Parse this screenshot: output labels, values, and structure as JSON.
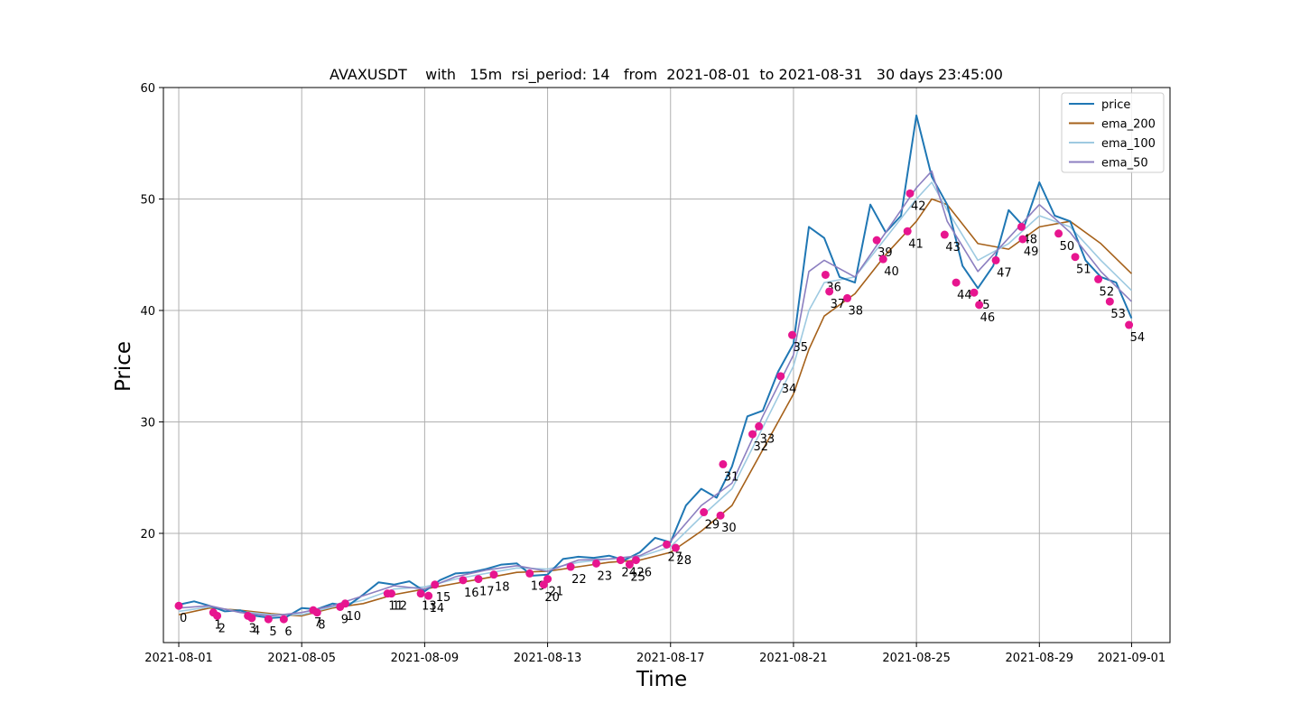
{
  "chart_data": {
    "type": "line",
    "title": "AVAXUSDT    with   15m  rsi_period: 14   from  2021-08-01  to 2021-08-31   30 days 23:45:00",
    "xlabel": "Time",
    "ylabel": "Price",
    "x_range": [
      "2021-07-31T12:00",
      "2021-09-02T06:00"
    ],
    "ylim": [
      10.2,
      60
    ],
    "x_ticks": [
      "2021-08-01",
      "2021-08-05",
      "2021-08-09",
      "2021-08-13",
      "2021-08-17",
      "2021-08-21",
      "2021-08-25",
      "2021-08-29",
      "2021-09-01"
    ],
    "y_ticks": [
      20,
      30,
      40,
      50,
      60
    ],
    "grid": true,
    "legend": "top-right",
    "series": [
      {
        "name": "price",
        "color": "#1f77b4",
        "points": [
          [
            "2021-08-01T00:00",
            13.6
          ],
          [
            "2021-08-01T12:00",
            13.9
          ],
          [
            "2021-08-02T00:00",
            13.5
          ],
          [
            "2021-08-02T12:00",
            13.0
          ],
          [
            "2021-08-03T00:00",
            13.1
          ],
          [
            "2021-08-03T12:00",
            12.6
          ],
          [
            "2021-08-04T00:00",
            12.4
          ],
          [
            "2021-08-04T12:00",
            12.5
          ],
          [
            "2021-08-05T00:00",
            13.3
          ],
          [
            "2021-08-05T12:00",
            13.2
          ],
          [
            "2021-08-06T00:00",
            13.7
          ],
          [
            "2021-08-06T12:00",
            13.5
          ],
          [
            "2021-08-07T00:00",
            14.5
          ],
          [
            "2021-08-07T12:00",
            15.6
          ],
          [
            "2021-08-08T00:00",
            15.4
          ],
          [
            "2021-08-08T12:00",
            15.7
          ],
          [
            "2021-08-09T00:00",
            14.8
          ],
          [
            "2021-08-09T12:00",
            15.8
          ],
          [
            "2021-08-10T00:00",
            16.4
          ],
          [
            "2021-08-10T12:00",
            16.5
          ],
          [
            "2021-08-11T00:00",
            16.8
          ],
          [
            "2021-08-11T12:00",
            17.2
          ],
          [
            "2021-08-12T00:00",
            17.3
          ],
          [
            "2021-08-12T12:00",
            16.2
          ],
          [
            "2021-08-13T00:00",
            16.3
          ],
          [
            "2021-08-13T12:00",
            17.7
          ],
          [
            "2021-08-14T00:00",
            17.9
          ],
          [
            "2021-08-14T12:00",
            17.8
          ],
          [
            "2021-08-15T00:00",
            18.0
          ],
          [
            "2021-08-15T12:00",
            17.6
          ],
          [
            "2021-08-16T00:00",
            18.3
          ],
          [
            "2021-08-16T12:00",
            19.6
          ],
          [
            "2021-08-17T00:00",
            19.2
          ],
          [
            "2021-08-17T12:00",
            22.5
          ],
          [
            "2021-08-18T00:00",
            24.0
          ],
          [
            "2021-08-18T12:00",
            23.2
          ],
          [
            "2021-08-19T00:00",
            26.0
          ],
          [
            "2021-08-19T12:00",
            30.5
          ],
          [
            "2021-08-20T00:00",
            31.0
          ],
          [
            "2021-08-20T12:00",
            34.5
          ],
          [
            "2021-08-21T00:00",
            37.0
          ],
          [
            "2021-08-21T12:00",
            47.5
          ],
          [
            "2021-08-22T00:00",
            46.5
          ],
          [
            "2021-08-22T12:00",
            43.0
          ],
          [
            "2021-08-23T00:00",
            42.5
          ],
          [
            "2021-08-23T12:00",
            49.5
          ],
          [
            "2021-08-24T00:00",
            47.0
          ],
          [
            "2021-08-24T12:00",
            48.5
          ],
          [
            "2021-08-25T00:00",
            57.5
          ],
          [
            "2021-08-25T12:00",
            52.0
          ],
          [
            "2021-08-26T00:00",
            49.5
          ],
          [
            "2021-08-26T12:00",
            44.0
          ],
          [
            "2021-08-27T00:00",
            42.0
          ],
          [
            "2021-08-27T12:00",
            44.0
          ],
          [
            "2021-08-28T00:00",
            49.0
          ],
          [
            "2021-08-28T12:00",
            47.5
          ],
          [
            "2021-08-29T00:00",
            51.5
          ],
          [
            "2021-08-29T12:00",
            48.5
          ],
          [
            "2021-08-30T00:00",
            48.0
          ],
          [
            "2021-08-30T12:00",
            44.5
          ],
          [
            "2021-08-31T00:00",
            43.0
          ],
          [
            "2021-08-31T12:00",
            42.5
          ],
          [
            "2021-09-01T00:00",
            39.3
          ]
        ]
      },
      {
        "name": "ema_200",
        "color": "#a6611a",
        "points": [
          [
            "2021-08-01T00:00",
            12.7
          ],
          [
            "2021-08-02T00:00",
            13.3
          ],
          [
            "2021-08-03T00:00",
            13.1
          ],
          [
            "2021-08-04T00:00",
            12.8
          ],
          [
            "2021-08-05T00:00",
            12.6
          ],
          [
            "2021-08-06T00:00",
            13.3
          ],
          [
            "2021-08-07T00:00",
            13.7
          ],
          [
            "2021-08-08T00:00",
            14.5
          ],
          [
            "2021-08-09T00:00",
            15.0
          ],
          [
            "2021-08-10T00:00",
            15.5
          ],
          [
            "2021-08-11T00:00",
            16.0
          ],
          [
            "2021-08-12T00:00",
            16.5
          ],
          [
            "2021-08-13T00:00",
            16.6
          ],
          [
            "2021-08-14T00:00",
            17.0
          ],
          [
            "2021-08-15T00:00",
            17.4
          ],
          [
            "2021-08-16T00:00",
            17.6
          ],
          [
            "2021-08-17T00:00",
            18.3
          ],
          [
            "2021-08-18T00:00",
            20.2
          ],
          [
            "2021-08-19T00:00",
            22.5
          ],
          [
            "2021-08-20T00:00",
            27.5
          ],
          [
            "2021-08-21T00:00",
            32.5
          ],
          [
            "2021-08-21T12:00",
            36.5
          ],
          [
            "2021-08-22T00:00",
            39.5
          ],
          [
            "2021-08-23T00:00",
            41.5
          ],
          [
            "2021-08-24T00:00",
            45.0
          ],
          [
            "2021-08-25T00:00",
            48.0
          ],
          [
            "2021-08-25T12:00",
            50.0
          ],
          [
            "2021-08-26T00:00",
            49.5
          ],
          [
            "2021-08-27T00:00",
            46.0
          ],
          [
            "2021-08-28T00:00",
            45.5
          ],
          [
            "2021-08-29T00:00",
            47.5
          ],
          [
            "2021-08-30T00:00",
            48.0
          ],
          [
            "2021-08-31T00:00",
            46.0
          ],
          [
            "2021-09-01T00:00",
            43.3
          ]
        ]
      },
      {
        "name": "ema_100",
        "color": "#9ecae1",
        "points": [
          [
            "2021-08-01T00:00",
            13.0
          ],
          [
            "2021-08-02T00:00",
            13.4
          ],
          [
            "2021-08-03T00:00",
            13.0
          ],
          [
            "2021-08-04T00:00",
            12.7
          ],
          [
            "2021-08-05T00:00",
            12.7
          ],
          [
            "2021-08-06T00:00",
            13.4
          ],
          [
            "2021-08-07T00:00",
            14.0
          ],
          [
            "2021-08-08T00:00",
            15.0
          ],
          [
            "2021-08-09T00:00",
            15.2
          ],
          [
            "2021-08-10T00:00",
            15.9
          ],
          [
            "2021-08-11T00:00",
            16.4
          ],
          [
            "2021-08-12T00:00",
            16.9
          ],
          [
            "2021-08-13T00:00",
            16.8
          ],
          [
            "2021-08-14T00:00",
            17.4
          ],
          [
            "2021-08-15T00:00",
            17.7
          ],
          [
            "2021-08-16T00:00",
            17.9
          ],
          [
            "2021-08-17T00:00",
            18.8
          ],
          [
            "2021-08-18T00:00",
            21.5
          ],
          [
            "2021-08-19T00:00",
            24.0
          ],
          [
            "2021-08-20T00:00",
            29.5
          ],
          [
            "2021-08-21T00:00",
            35.0
          ],
          [
            "2021-08-21T12:00",
            40.0
          ],
          [
            "2021-08-22T00:00",
            42.5
          ],
          [
            "2021-08-23T00:00",
            43.0
          ],
          [
            "2021-08-24T00:00",
            46.5
          ],
          [
            "2021-08-25T00:00",
            50.0
          ],
          [
            "2021-08-25T12:00",
            51.5
          ],
          [
            "2021-08-26T00:00",
            49.0
          ],
          [
            "2021-08-27T00:00",
            44.5
          ],
          [
            "2021-08-28T00:00",
            46.0
          ],
          [
            "2021-08-29T00:00",
            48.5
          ],
          [
            "2021-08-30T00:00",
            47.5
          ],
          [
            "2021-08-31T00:00",
            44.5
          ],
          [
            "2021-09-01T00:00",
            41.8
          ]
        ]
      },
      {
        "name": "ema_50",
        "color": "#8c7fc0",
        "points": [
          [
            "2021-08-01T00:00",
            13.3
          ],
          [
            "2021-08-02T00:00",
            13.5
          ],
          [
            "2021-08-03T00:00",
            12.9
          ],
          [
            "2021-08-04T00:00",
            12.6
          ],
          [
            "2021-08-05T00:00",
            12.9
          ],
          [
            "2021-08-06T00:00",
            13.5
          ],
          [
            "2021-08-07T00:00",
            14.4
          ],
          [
            "2021-08-08T00:00",
            15.3
          ],
          [
            "2021-08-09T00:00",
            15.0
          ],
          [
            "2021-08-10T00:00",
            16.1
          ],
          [
            "2021-08-11T00:00",
            16.7
          ],
          [
            "2021-08-12T00:00",
            17.1
          ],
          [
            "2021-08-13T00:00",
            16.6
          ],
          [
            "2021-08-14T00:00",
            17.6
          ],
          [
            "2021-08-15T00:00",
            17.7
          ],
          [
            "2021-08-16T00:00",
            18.0
          ],
          [
            "2021-08-17T00:00",
            19.3
          ],
          [
            "2021-08-18T00:00",
            22.5
          ],
          [
            "2021-08-19T00:00",
            24.5
          ],
          [
            "2021-08-20T00:00",
            30.5
          ],
          [
            "2021-08-21T00:00",
            36.0
          ],
          [
            "2021-08-21T12:00",
            43.5
          ],
          [
            "2021-08-22T00:00",
            44.5
          ],
          [
            "2021-08-23T00:00",
            43.0
          ],
          [
            "2021-08-24T00:00",
            47.0
          ],
          [
            "2021-08-25T00:00",
            51.0
          ],
          [
            "2021-08-25T12:00",
            52.5
          ],
          [
            "2021-08-26T00:00",
            48.0
          ],
          [
            "2021-08-27T00:00",
            43.5
          ],
          [
            "2021-08-28T00:00",
            46.5
          ],
          [
            "2021-08-29T00:00",
            49.5
          ],
          [
            "2021-08-30T00:00",
            47.0
          ],
          [
            "2021-08-31T00:00",
            43.5
          ],
          [
            "2021-09-01T00:00",
            40.8
          ]
        ]
      }
    ],
    "signals": {
      "color": "#e7158f",
      "points": [
        {
          "label": "0",
          "t": "2021-08-01T00:00",
          "y": 13.5
        },
        {
          "label": "1",
          "t": "2021-08-02T03:00",
          "y": 12.9
        },
        {
          "label": "2",
          "t": "2021-08-02T06:00",
          "y": 12.6
        },
        {
          "label": "3",
          "t": "2021-08-03T06:00",
          "y": 12.6
        },
        {
          "label": "4",
          "t": "2021-08-03T09:00",
          "y": 12.4
        },
        {
          "label": "5",
          "t": "2021-08-03T22:00",
          "y": 12.3
        },
        {
          "label": "6",
          "t": "2021-08-04T10:00",
          "y": 12.3
        },
        {
          "label": "7",
          "t": "2021-08-05T09:00",
          "y": 13.1
        },
        {
          "label": "8",
          "t": "2021-08-05T12:00",
          "y": 12.9
        },
        {
          "label": "9",
          "t": "2021-08-06T06:00",
          "y": 13.4
        },
        {
          "label": "10",
          "t": "2021-08-06T10:00",
          "y": 13.7
        },
        {
          "label": "11",
          "t": "2021-08-07T19:00",
          "y": 14.6
        },
        {
          "label": "12",
          "t": "2021-08-07T22:00",
          "y": 14.6
        },
        {
          "label": "13",
          "t": "2021-08-08T21:00",
          "y": 14.6
        },
        {
          "label": "14",
          "t": "2021-08-09T03:00",
          "y": 14.4
        },
        {
          "label": "15",
          "t": "2021-08-09T08:00",
          "y": 15.4
        },
        {
          "label": "16",
          "t": "2021-08-10T06:00",
          "y": 15.8
        },
        {
          "label": "17",
          "t": "2021-08-10T18:00",
          "y": 15.9
        },
        {
          "label": "18",
          "t": "2021-08-11T06:00",
          "y": 16.3
        },
        {
          "label": "19",
          "t": "2021-08-12T10:00",
          "y": 16.4
        },
        {
          "label": "20",
          "t": "2021-08-12T21:00",
          "y": 15.4
        },
        {
          "label": "21",
          "t": "2021-08-13T00:00",
          "y": 15.9
        },
        {
          "label": "22",
          "t": "2021-08-13T18:00",
          "y": 17.0
        },
        {
          "label": "23",
          "t": "2021-08-14T14:00",
          "y": 17.3
        },
        {
          "label": "24",
          "t": "2021-08-15T09:00",
          "y": 17.6
        },
        {
          "label": "25",
          "t": "2021-08-15T16:00",
          "y": 17.2
        },
        {
          "label": "26",
          "t": "2021-08-15T21:00",
          "y": 17.6
        },
        {
          "label": "27",
          "t": "2021-08-16T21:00",
          "y": 19.0
        },
        {
          "label": "28",
          "t": "2021-08-17T04:00",
          "y": 18.7
        },
        {
          "label": "29",
          "t": "2021-08-18T02:00",
          "y": 21.9
        },
        {
          "label": "30",
          "t": "2021-08-18T15:00",
          "y": 21.6
        },
        {
          "label": "31",
          "t": "2021-08-18T17:00",
          "y": 26.2
        },
        {
          "label": "32",
          "t": "2021-08-19T16:00",
          "y": 28.9
        },
        {
          "label": "33",
          "t": "2021-08-19T21:00",
          "y": 29.6
        },
        {
          "label": "34",
          "t": "2021-08-20T14:00",
          "y": 34.1
        },
        {
          "label": "35",
          "t": "2021-08-20T23:00",
          "y": 37.8
        },
        {
          "label": "36",
          "t": "2021-08-22T01:00",
          "y": 43.2
        },
        {
          "label": "37",
          "t": "2021-08-22T04:00",
          "y": 41.7
        },
        {
          "label": "38",
          "t": "2021-08-22T18:00",
          "y": 41.1
        },
        {
          "label": "39",
          "t": "2021-08-23T17:00",
          "y": 46.3
        },
        {
          "label": "40",
          "t": "2021-08-23T22:00",
          "y": 44.6
        },
        {
          "label": "41",
          "t": "2021-08-24T17:00",
          "y": 47.1
        },
        {
          "label": "42",
          "t": "2021-08-24T19:00",
          "y": 50.5
        },
        {
          "label": "43",
          "t": "2021-08-25T22:00",
          "y": 46.8
        },
        {
          "label": "44",
          "t": "2021-08-26T07:00",
          "y": 42.5
        },
        {
          "label": "45",
          "t": "2021-08-26T21:00",
          "y": 41.6
        },
        {
          "label": "46",
          "t": "2021-08-27T01:00",
          "y": 40.5
        },
        {
          "label": "47",
          "t": "2021-08-27T14:00",
          "y": 44.5
        },
        {
          "label": "48",
          "t": "2021-08-28T10:00",
          "y": 47.5
        },
        {
          "label": "49",
          "t": "2021-08-28T11:00",
          "y": 46.4
        },
        {
          "label": "50",
          "t": "2021-08-29T15:00",
          "y": 46.9
        },
        {
          "label": "51",
          "t": "2021-08-30T04:00",
          "y": 44.8
        },
        {
          "label": "52",
          "t": "2021-08-30T22:00",
          "y": 42.8
        },
        {
          "label": "53",
          "t": "2021-08-31T07:00",
          "y": 40.8
        },
        {
          "label": "54",
          "t": "2021-08-31T22:00",
          "y": 38.7
        }
      ]
    }
  }
}
